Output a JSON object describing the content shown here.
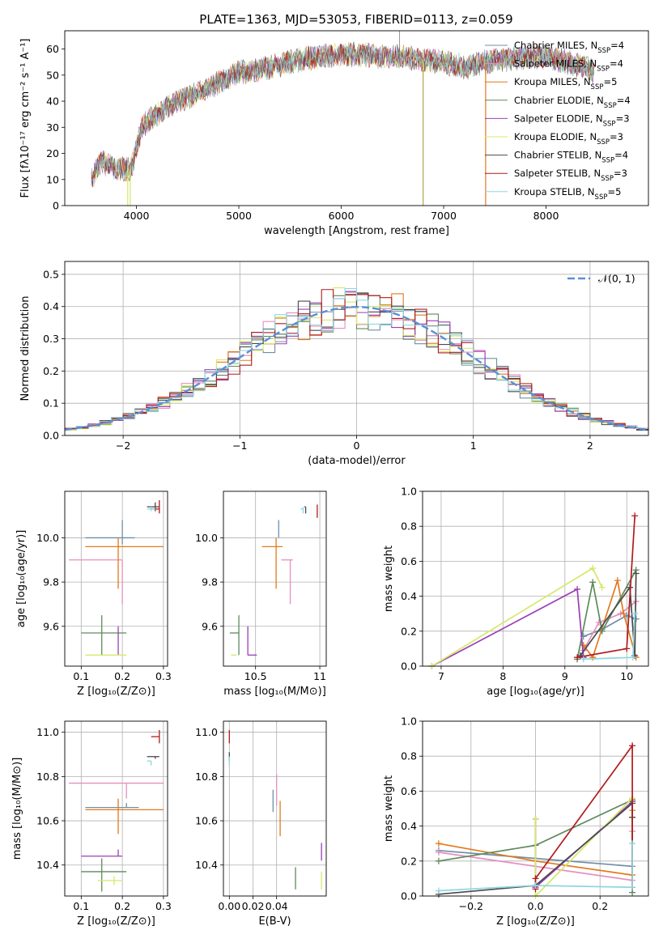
{
  "figure_title": "PLATE=1363, MJD=53053, FIBERID=0113, z=0.059",
  "colors": {
    "Chabrier MILES": "#6f8fa8",
    "Salpeter MILES": "#e58fbf",
    "Kroupa MILES": "#e2791d",
    "Chabrier ELODIE": "#5e8a5e",
    "Salpeter ELODIE": "#9a3fb5",
    "Kroupa ELODIE": "#d6e86a",
    "Chabrier STELIB": "#4a4a4a",
    "Salpeter STELIB": "#b01c1c",
    "Kroupa STELIB": "#8fd6e0",
    "Chabrier MILES line": "#6b8fd6",
    "normal": "#5b8fd6"
  },
  "chart_data": [
    {
      "id": "spectrum",
      "type": "line",
      "title": "PLATE=1363, MJD=53053, FIBERID=0113, z=0.059",
      "xlabel": "wavelength [Angstrom, rest frame]",
      "ylabel": "Flux [fλ10⁻¹⁷ erg cm⁻² s⁻¹ A⁻¹]",
      "xlim": [
        3300,
        9000
      ],
      "ylim": [
        0,
        67
      ],
      "xticks": [
        4000,
        5000,
        6000,
        7000,
        8000
      ],
      "yticks": [
        0,
        10,
        20,
        30,
        40,
        50,
        60
      ],
      "legend_position": "top-right",
      "legend": [
        {
          "model": "Chabrier MILES",
          "n": "4"
        },
        {
          "model": "Salpeter MILES",
          "n": "4"
        },
        {
          "model": "Kroupa MILES",
          "n": "5"
        },
        {
          "model": "Chabrier ELODIE",
          "n": "4"
        },
        {
          "model": "Salpeter ELODIE",
          "n": "3"
        },
        {
          "model": "Kroupa ELODIE",
          "n": "3"
        },
        {
          "model": "Chabrier STELIB",
          "n": "4"
        },
        {
          "model": "Salpeter STELIB",
          "n": "3"
        },
        {
          "model": "Kroupa STELIB",
          "n": "5"
        }
      ],
      "continuum": [
        [
          3560,
          10
        ],
        [
          3650,
          17
        ],
        [
          3800,
          14
        ],
        [
          3950,
          14
        ],
        [
          4050,
          30
        ],
        [
          4200,
          35
        ],
        [
          4400,
          40
        ],
        [
          4600,
          43
        ],
        [
          4800,
          47
        ],
        [
          5000,
          51
        ],
        [
          5200,
          52
        ],
        [
          5400,
          54
        ],
        [
          5600,
          56
        ],
        [
          5800,
          57
        ],
        [
          6000,
          58
        ],
        [
          6200,
          58
        ],
        [
          6400,
          57
        ],
        [
          6600,
          57
        ],
        [
          6800,
          56
        ],
        [
          7000,
          55
        ],
        [
          7200,
          53
        ],
        [
          7400,
          55
        ],
        [
          7600,
          56
        ],
        [
          7800,
          57
        ],
        [
          8000,
          57
        ],
        [
          8200,
          55
        ],
        [
          8400,
          53
        ],
        [
          8470,
          51
        ]
      ],
      "dropouts": [
        [
          3940,
          0
        ],
        [
          3915,
          0
        ],
        [
          6800,
          0
        ],
        [
          7410,
          0
        ]
      ],
      "spike": [
        6570,
        70
      ]
    },
    {
      "id": "residuals",
      "type": "histogram",
      "xlabel": "(data-model)/error",
      "ylabel": "Normed distribution",
      "xlim": [
        -2.5,
        2.5
      ],
      "ylim": [
        0,
        0.54
      ],
      "xticks": [
        -2,
        -1,
        0,
        1,
        2
      ],
      "yticks": [
        0.0,
        0.1,
        0.2,
        0.3,
        0.4,
        0.5
      ],
      "legend": "𝒩(0, 1)",
      "legend_position": "top-right",
      "normal_mean": 0,
      "normal_sigma": 1,
      "bin_width": 0.1,
      "bin_start": -2.5
    },
    {
      "id": "age-vs-Z",
      "type": "errorbar",
      "xlabel": "Z [log₁₀(Z/Z⊙)]",
      "ylabel": "age  [log₁₀(age/yr)]",
      "xlim": [
        0.06,
        0.31
      ],
      "ylim": [
        9.42,
        10.21
      ],
      "xticks": [
        0.1,
        0.2,
        0.3
      ],
      "yticks": [
        9.6,
        9.8,
        10.0
      ],
      "points": [
        {
          "model": "Chabrier MILES",
          "x": 0.2,
          "xerr": [
            0.09,
            0.03
          ],
          "y": 10.0,
          "yerr": [
            0.03,
            0.08
          ]
        },
        {
          "model": "Salpeter MILES",
          "x": 0.2,
          "xerr": [
            0.13,
            0.0
          ],
          "y": 9.9,
          "yerr": [
            0.2,
            0.0
          ]
        },
        {
          "model": "Kroupa MILES",
          "x": 0.19,
          "xerr": [
            0.08,
            0.11
          ],
          "y": 9.96,
          "yerr": [
            0.19,
            0.04
          ]
        },
        {
          "model": "Chabrier ELODIE",
          "x": 0.15,
          "xerr": [
            0.05,
            0.06
          ],
          "y": 9.57,
          "yerr": [
            0.1,
            0.08
          ]
        },
        {
          "model": "Salpeter ELODIE",
          "x": 0.19,
          "xerr": [
            0.0,
            0.0
          ],
          "y": 9.47,
          "yerr": [
            0.0,
            0.13
          ]
        },
        {
          "model": "Kroupa ELODIE",
          "x": 0.19,
          "xerr": [
            0.08,
            0.02
          ],
          "y": 9.47,
          "yerr": [
            0.0,
            0.0
          ]
        },
        {
          "model": "Chabrier STELIB",
          "x": 0.28,
          "xerr": [
            0.02,
            0.01
          ],
          "y": 10.14,
          "yerr": [
            0.02,
            0.02
          ]
        },
        {
          "model": "Salpeter STELIB",
          "x": 0.29,
          "xerr": [
            0.02,
            0.0
          ],
          "y": 10.13,
          "yerr": [
            0.02,
            0.04
          ]
        },
        {
          "model": "Kroupa STELIB",
          "x": 0.27,
          "xerr": [
            0.01,
            0.01
          ],
          "y": 10.13,
          "yerr": [
            0.01,
            0.01
          ]
        }
      ]
    },
    {
      "id": "age-vs-mass",
      "type": "errorbar",
      "xlabel": "mass [log₁₀(M/M⊙)]",
      "xlim": [
        10.25,
        11.05
      ],
      "ylim": [
        9.42,
        10.21
      ],
      "xticks": [
        10.5,
        11.0
      ],
      "yticks": [
        9.6,
        9.8,
        10.0
      ],
      "points": [
        {
          "model": "Chabrier MILES",
          "x": 10.68,
          "xerr": [
            0.0,
            0.0
          ],
          "y": 10.0,
          "yerr": [
            0.0,
            0.08
          ]
        },
        {
          "model": "Salpeter MILES",
          "x": 10.77,
          "xerr": [
            0.07,
            0.02
          ],
          "y": 9.9,
          "yerr": [
            0.2,
            0.0
          ]
        },
        {
          "model": "Kroupa MILES",
          "x": 10.66,
          "xerr": [
            0.11,
            0.05
          ],
          "y": 9.96,
          "yerr": [
            0.19,
            0.04
          ]
        },
        {
          "model": "Chabrier ELODIE",
          "x": 10.37,
          "xerr": [
            0.07,
            0.0
          ],
          "y": 9.57,
          "yerr": [
            0.1,
            0.08
          ]
        },
        {
          "model": "Salpeter ELODIE",
          "x": 10.44,
          "xerr": [
            0.0,
            0.07
          ],
          "y": 9.47,
          "yerr": [
            0.0,
            0.13
          ]
        },
        {
          "model": "Kroupa ELODIE",
          "x": 10.33,
          "xerr": [
            0.02,
            0.02
          ],
          "y": 9.47,
          "yerr": [
            0.0,
            0.0
          ]
        },
        {
          "model": "Chabrier STELIB",
          "x": 10.89,
          "xerr": [
            0.01,
            0.0
          ],
          "y": 10.14,
          "yerr": [
            0.03,
            0.0
          ]
        },
        {
          "model": "Salpeter STELIB",
          "x": 10.98,
          "xerr": [
            0.0,
            0.0
          ],
          "y": 10.12,
          "yerr": [
            0.03,
            0.03
          ]
        },
        {
          "model": "Kroupa STELIB",
          "x": 10.87,
          "xerr": [
            0.02,
            0.0
          ],
          "y": 10.13,
          "yerr": [
            0.02,
            0.01
          ]
        }
      ]
    },
    {
      "id": "weight-vs-age",
      "type": "line",
      "xlabel": "age  [log₁₀(age/yr)]",
      "ylabel": "mass weight",
      "xlim": [
        6.7,
        10.35
      ],
      "ylim": [
        0,
        1.0
      ],
      "xticks": [
        7,
        8,
        9,
        10
      ],
      "yticks": [
        0.0,
        0.2,
        0.4,
        0.6,
        0.8,
        1.0
      ],
      "series": [
        {
          "model": "Chabrier MILES",
          "x": [
            9.3,
            9.6,
            10.0,
            10.15
          ],
          "y": [
            0.17,
            0.21,
            0.29,
            0.27
          ]
        },
        {
          "model": "Salpeter MILES",
          "x": [
            9.3,
            9.55,
            9.9,
            10.15
          ],
          "y": [
            0.09,
            0.25,
            0.3,
            0.37
          ]
        },
        {
          "model": "Kroupa MILES",
          "x": [
            9.3,
            9.45,
            9.85,
            9.95,
            10.15
          ],
          "y": [
            0.12,
            0.05,
            0.49,
            0.3,
            0.05
          ]
        },
        {
          "model": "Chabrier ELODIE",
          "x": [
            9.2,
            9.45,
            9.6,
            10.15
          ],
          "y": [
            0.04,
            0.48,
            0.2,
            0.55
          ]
        },
        {
          "model": "Salpeter ELODIE",
          "x": [
            6.85,
            9.2,
            9.3
          ],
          "y": [
            0.0,
            0.44,
            0.05
          ]
        },
        {
          "model": "Kroupa ELODIE",
          "x": [
            6.85,
            9.45,
            9.6
          ],
          "y": [
            0.0,
            0.56,
            0.45
          ]
        },
        {
          "model": "Chabrier STELIB",
          "x": [
            9.25,
            10.05,
            10.13,
            10.15
          ],
          "y": [
            0.06,
            0.45,
            0.06,
            0.53
          ]
        },
        {
          "model": "Salpeter STELIB",
          "x": [
            9.2,
            10.0,
            10.13
          ],
          "y": [
            0.05,
            0.1,
            0.86
          ]
        },
        {
          "model": "Kroupa STELIB",
          "x": [
            9.3,
            10.1,
            10.13
          ],
          "y": [
            0.04,
            0.05,
            0.3
          ]
        }
      ]
    },
    {
      "id": "mass-vs-Z",
      "type": "errorbar",
      "xlabel": "Z [log₁₀(Z/Z⊙)]",
      "ylabel": "mass [log₁₀(M/M⊙)]",
      "xlim": [
        0.06,
        0.31
      ],
      "ylim": [
        10.26,
        11.05
      ],
      "xticks": [
        0.1,
        0.2,
        0.3
      ],
      "yticks": [
        10.4,
        10.6,
        10.8,
        11.0
      ],
      "points": [
        {
          "model": "Chabrier MILES",
          "x": 0.21,
          "xerr": [
            0.1,
            0.03
          ],
          "y": 10.66,
          "yerr": [
            0.0,
            0.02
          ]
        },
        {
          "model": "Salpeter MILES",
          "x": 0.21,
          "xerr": [
            0.14,
            0.09
          ],
          "y": 10.77,
          "yerr": [
            0.07,
            0.0
          ]
        },
        {
          "model": "Kroupa MILES",
          "x": 0.19,
          "xerr": [
            0.08,
            0.11
          ],
          "y": 10.65,
          "yerr": [
            0.11,
            0.05
          ]
        },
        {
          "model": "Chabrier ELODIE",
          "x": 0.15,
          "xerr": [
            0.05,
            0.06
          ],
          "y": 10.37,
          "yerr": [
            0.09,
            0.06
          ]
        },
        {
          "model": "Salpeter ELODIE",
          "x": 0.19,
          "xerr": [
            0.09,
            0.01
          ],
          "y": 10.44,
          "yerr": [
            0.0,
            0.03
          ]
        },
        {
          "model": "Kroupa ELODIE",
          "x": 0.18,
          "xerr": [
            0.04,
            0.02
          ],
          "y": 10.33,
          "yerr": [
            0.02,
            0.02
          ]
        },
        {
          "model": "Chabrier STELIB",
          "x": 0.28,
          "xerr": [
            0.02,
            0.01
          ],
          "y": 10.89,
          "yerr": [
            0.01,
            0.0
          ]
        },
        {
          "model": "Salpeter STELIB",
          "x": 0.29,
          "xerr": [
            0.02,
            0.0
          ],
          "y": 10.98,
          "yerr": [
            0.03,
            0.03
          ]
        },
        {
          "model": "Kroupa STELIB",
          "x": 0.27,
          "xerr": [
            0.01,
            0.0
          ],
          "y": 10.87,
          "yerr": [
            0.02,
            0.0
          ]
        }
      ]
    },
    {
      "id": "mass-vs-EBV",
      "type": "errorbar",
      "xlabel": "E(B-V)",
      "xlim": [
        -0.005,
        0.082
      ],
      "ylim": [
        10.26,
        11.05
      ],
      "xticks": [
        0.0,
        0.02,
        0.04
      ],
      "xtick_labels": [
        "0.00",
        "0.02",
        "0.04"
      ],
      "yticks": [
        10.4,
        10.6,
        10.8,
        11.0
      ],
      "points": [
        {
          "model": "Chabrier MILES",
          "x": 0.037,
          "xerr": [
            0.0,
            0.0
          ],
          "y": 10.69,
          "yerr": [
            0.05,
            0.05
          ]
        },
        {
          "model": "Salpeter MILES",
          "x": 0.04,
          "xerr": [
            0.0,
            0.0
          ],
          "y": 10.74,
          "yerr": [
            0.07,
            0.07
          ]
        },
        {
          "model": "Kroupa MILES",
          "x": 0.043,
          "xerr": [
            0.0,
            0.0
          ],
          "y": 10.61,
          "yerr": [
            0.08,
            0.08
          ]
        },
        {
          "model": "Chabrier ELODIE",
          "x": 0.056,
          "xerr": [
            0.0,
            0.0
          ],
          "y": 10.34,
          "yerr": [
            0.05,
            0.05
          ]
        },
        {
          "model": "Salpeter ELODIE",
          "x": 0.078,
          "xerr": [
            0.0,
            0.0
          ],
          "y": 10.46,
          "yerr": [
            0.04,
            0.04
          ]
        },
        {
          "model": "Kroupa ELODIE",
          "x": 0.078,
          "xerr": [
            0.0,
            0.0
          ],
          "y": 10.33,
          "yerr": [
            0.04,
            0.04
          ]
        },
        {
          "model": "Chabrier STELIB",
          "x": 0.0,
          "xerr": [
            0.0,
            0.0
          ],
          "y": 10.89,
          "yerr": [
            0.02,
            0.02
          ]
        },
        {
          "model": "Salpeter STELIB",
          "x": 0.0,
          "xerr": [
            0.0,
            0.0
          ],
          "y": 10.98,
          "yerr": [
            0.03,
            0.03
          ]
        },
        {
          "model": "Kroupa STELIB",
          "x": 0.0,
          "xerr": [
            0.0,
            0.0
          ],
          "y": 10.87,
          "yerr": [
            0.02,
            0.02
          ]
        }
      ]
    },
    {
      "id": "weight-vs-Z",
      "type": "line",
      "xlabel": "Z [log₁₀(Z/Z⊙)]",
      "ylabel": "mass weight",
      "xlim": [
        -0.35,
        0.35
      ],
      "ylim": [
        0,
        1.0
      ],
      "xticks": [
        -0.2,
        0.0,
        0.2
      ],
      "xtick_labels": [
        "−0.2",
        "0.0",
        "0.2"
      ],
      "yticks": [
        0.0,
        0.2,
        0.4,
        0.6,
        0.8,
        1.0
      ],
      "series": [
        {
          "model": "Chabrier MILES",
          "x": [
            -0.3,
            0.3,
            0.3
          ],
          "y": [
            0.26,
            0.17,
            0.54
          ]
        },
        {
          "model": "Salpeter MILES",
          "x": [
            -0.3,
            0.3,
            0.3
          ],
          "y": [
            0.25,
            0.09,
            0.37
          ]
        },
        {
          "model": "Kroupa MILES",
          "x": [
            -0.3,
            0.0,
            0.3,
            0.3
          ],
          "y": [
            0.3,
            0.2,
            0.12,
            0.49
          ]
        },
        {
          "model": "Chabrier ELODIE",
          "x": [
            -0.3,
            0.0,
            0.3,
            0.3
          ],
          "y": [
            0.2,
            0.29,
            0.55,
            0.02
          ]
        },
        {
          "model": "Salpeter ELODIE",
          "x": [
            0.0,
            0.0,
            0.3
          ],
          "y": [
            0.44,
            0.05,
            0.54
          ]
        },
        {
          "model": "Kroupa ELODIE",
          "x": [
            0.0,
            0.0,
            0.3,
            0.3
          ],
          "y": [
            0.44,
            0.0,
            0.56,
            0.45
          ]
        },
        {
          "model": "Chabrier STELIB",
          "x": [
            -0.3,
            0.0,
            0.3,
            0.3
          ],
          "y": [
            0.01,
            0.06,
            0.53,
            0.45
          ]
        },
        {
          "model": "Salpeter STELIB",
          "x": [
            0.0,
            0.0,
            0.3,
            0.3
          ],
          "y": [
            0.04,
            0.1,
            0.86,
            0.05
          ]
        },
        {
          "model": "Kroupa STELIB",
          "x": [
            -0.3,
            0.0,
            0.3,
            0.3
          ],
          "y": [
            0.03,
            0.06,
            0.05,
            0.3
          ]
        }
      ]
    }
  ]
}
